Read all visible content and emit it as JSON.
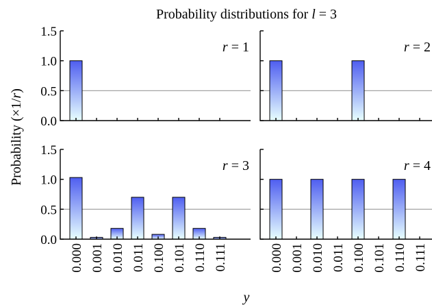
{
  "chart_data": {
    "type": "bar",
    "title": "Probability distributions for l = 3",
    "title_parts": [
      "Probability distributions for ",
      "l",
      " = 3"
    ],
    "ylabel": "Probability (×1/r)",
    "ylabel_parts": [
      "Probability (×1/",
      "r",
      ")"
    ],
    "xlabel": "y",
    "categories": [
      "0.000",
      "0.001",
      "0.010",
      "0.011",
      "0.100",
      "0.101",
      "0.110",
      "0.111"
    ],
    "ylim": [
      0,
      1.5
    ],
    "yticks": [
      "0.0",
      "0.5",
      "1.0",
      "1.5"
    ],
    "reference_line": 0.5,
    "bar_gradient": {
      "top": "#4f5ef0",
      "bottom": "#e8ffff"
    },
    "reference_line_color": "#999999",
    "panels": [
      {
        "label": "r = 1",
        "label_var": "r",
        "label_rest": " = 1",
        "values": [
          1.0,
          0,
          0,
          0,
          0,
          0,
          0,
          0
        ]
      },
      {
        "label": "r = 2",
        "label_var": "r",
        "label_rest": " = 2",
        "values": [
          1.0,
          0,
          0,
          0,
          1.0,
          0,
          0,
          0
        ]
      },
      {
        "label": "r = 3",
        "label_var": "r",
        "label_rest": " = 3",
        "values": [
          1.03,
          0.03,
          0.18,
          0.7,
          0.08,
          0.7,
          0.18,
          0.03
        ]
      },
      {
        "label": "r = 4",
        "label_var": "r",
        "label_rest": " = 4",
        "values": [
          1.0,
          0,
          1.0,
          0,
          1.0,
          0,
          1.0,
          0
        ]
      }
    ]
  }
}
